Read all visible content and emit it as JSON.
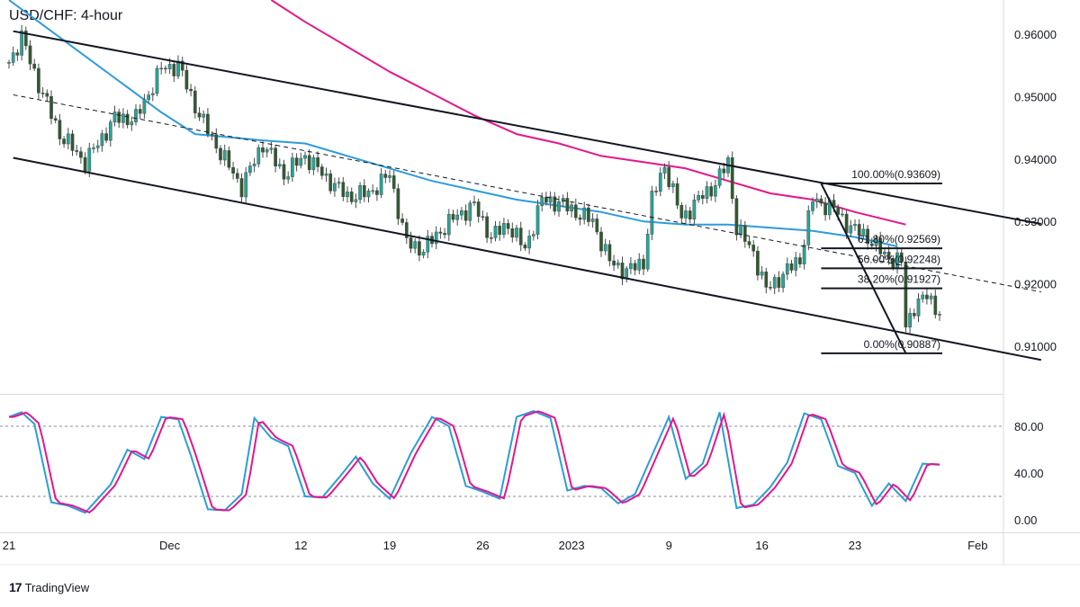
{
  "chart_title": "USD/CHF: 4-hour",
  "brand": {
    "logo": "17",
    "name": "TradingView"
  },
  "colors": {
    "up": "#26a69a",
    "down": "#2f5a2f",
    "candle": "#4a4a4a",
    "ma_fast": "#2d9cdb",
    "ma_slow": "#e4168c",
    "stoch_k": "#2d9cdb",
    "stoch_d": "#e4168c",
    "line": "#131722"
  },
  "chart_data": [
    {
      "type": "candlestick",
      "name": "price",
      "ylim": [
        0.9025,
        0.9655
      ],
      "yticks": [
        "0.96000",
        "0.95000",
        "0.94000",
        "0.93000",
        "0.92000",
        "0.91000"
      ],
      "ytick_values": [
        0.96,
        0.95,
        0.94,
        0.93,
        0.92,
        0.91
      ],
      "x_ticks": [
        "21",
        "Dec",
        "12",
        "19",
        "26",
        "2023",
        "9",
        "16",
        "23",
        "Feb"
      ],
      "grid": false,
      "close_anchors": [
        [
          0,
          0.9555
        ],
        [
          3,
          0.9595
        ],
        [
          7,
          0.952
        ],
        [
          12,
          0.944
        ],
        [
          18,
          0.9395
        ],
        [
          25,
          0.9465
        ],
        [
          30,
          0.9465
        ],
        [
          36,
          0.9545
        ],
        [
          40,
          0.955
        ],
        [
          45,
          0.947
        ],
        [
          50,
          0.941
        ],
        [
          55,
          0.9355
        ],
        [
          60,
          0.9425
        ],
        [
          65,
          0.9375
        ],
        [
          70,
          0.9405
        ],
        [
          75,
          0.937
        ],
        [
          80,
          0.934
        ],
        [
          85,
          0.9345
        ],
        [
          90,
          0.9375
        ],
        [
          94,
          0.9265
        ],
        [
          98,
          0.9255
        ],
        [
          102,
          0.9285
        ],
        [
          106,
          0.931
        ],
        [
          110,
          0.9325
        ],
        [
          114,
          0.9275
        ],
        [
          118,
          0.9295
        ],
        [
          122,
          0.9255
        ],
        [
          126,
          0.9335
        ],
        [
          130,
          0.933
        ],
        [
          134,
          0.9315
        ],
        [
          138,
          0.93
        ],
        [
          142,
          0.9235
        ],
        [
          146,
          0.922
        ],
        [
          150,
          0.9235
        ],
        [
          152,
          0.9335
        ],
        [
          155,
          0.939
        ],
        [
          159,
          0.9305
        ],
        [
          163,
          0.9335
        ],
        [
          167,
          0.936
        ],
        [
          170,
          0.9395
        ],
        [
          172,
          0.929
        ],
        [
          176,
          0.925
        ],
        [
          179,
          0.919
        ],
        [
          183,
          0.9215
        ],
        [
          187,
          0.924
        ],
        [
          190,
          0.9335
        ],
        [
          195,
          0.932
        ],
        [
          199,
          0.929
        ],
        [
          203,
          0.9275
        ],
        [
          207,
          0.9245
        ],
        [
          211,
          0.9235
        ],
        [
          212,
          0.913
        ],
        [
          214,
          0.9165
        ],
        [
          217,
          0.918
        ],
        [
          220,
          0.9155
        ]
      ],
      "ma_fast": [
        [
          0,
          0.9655
        ],
        [
          8,
          0.9615
        ],
        [
          18,
          0.9565
        ],
        [
          28,
          0.9515
        ],
        [
          36,
          0.9475
        ],
        [
          44,
          0.944
        ],
        [
          52,
          0.9435
        ],
        [
          60,
          0.943
        ],
        [
          70,
          0.9425
        ],
        [
          80,
          0.9405
        ],
        [
          90,
          0.9385
        ],
        [
          100,
          0.9365
        ],
        [
          110,
          0.935
        ],
        [
          120,
          0.9335
        ],
        [
          130,
          0.9325
        ],
        [
          140,
          0.9315
        ],
        [
          150,
          0.93
        ],
        [
          160,
          0.9295
        ],
        [
          170,
          0.9295
        ],
        [
          180,
          0.929
        ],
        [
          190,
          0.9285
        ],
        [
          200,
          0.9275
        ],
        [
          210,
          0.926
        ]
      ],
      "ma_slow": [
        [
          62,
          0.9655
        ],
        [
          70,
          0.962
        ],
        [
          80,
          0.958
        ],
        [
          90,
          0.954
        ],
        [
          100,
          0.9505
        ],
        [
          110,
          0.947
        ],
        [
          120,
          0.944
        ],
        [
          130,
          0.9425
        ],
        [
          140,
          0.9405
        ],
        [
          150,
          0.9395
        ],
        [
          160,
          0.9385
        ],
        [
          170,
          0.9365
        ],
        [
          180,
          0.9345
        ],
        [
          190,
          0.9335
        ],
        [
          200,
          0.9315
        ],
        [
          212,
          0.9295
        ]
      ],
      "channel_upper": [
        [
          1,
          0.9605
        ],
        [
          244,
          0.9296
        ]
      ],
      "channel_lower": [
        [
          1,
          0.9402
        ],
        [
          244,
          0.9078
        ]
      ],
      "channel_mid": [
        [
          1,
          0.9503
        ],
        [
          244,
          0.9187
        ]
      ],
      "swing_line": [
        [
          192,
          0.93609
        ],
        [
          212,
          0.90887
        ]
      ],
      "fibonacci": [
        {
          "label": "100.00%(0.93609)",
          "value": 0.93609
        },
        {
          "label": "61.80%(0.92569)",
          "value": 0.92569
        },
        {
          "label": "50.00%(0.92248)",
          "value": 0.92248
        },
        {
          "label": "38.20%(0.91927)",
          "value": 0.91927
        },
        {
          "label": "0.00%(0.90887)",
          "value": 0.90887
        }
      ]
    },
    {
      "type": "line",
      "name": "stochastic",
      "ylim": [
        0,
        100
      ],
      "yticks": [
        "80.00",
        "40.00",
        "0.00"
      ],
      "ytick_values": [
        80,
        40,
        0
      ],
      "levels": [
        80,
        20
      ],
      "k_anchors": [
        [
          0,
          88
        ],
        [
          3,
          92
        ],
        [
          6,
          82
        ],
        [
          10,
          15
        ],
        [
          14,
          12
        ],
        [
          18,
          6
        ],
        [
          24,
          30
        ],
        [
          28,
          60
        ],
        [
          32,
          52
        ],
        [
          36,
          88
        ],
        [
          40,
          86
        ],
        [
          43,
          55
        ],
        [
          47,
          9
        ],
        [
          51,
          8
        ],
        [
          55,
          22
        ],
        [
          58,
          87
        ],
        [
          62,
          70
        ],
        [
          66,
          63
        ],
        [
          70,
          20
        ],
        [
          74,
          19
        ],
        [
          78,
          36
        ],
        [
          82,
          54
        ],
        [
          86,
          31
        ],
        [
          90,
          18
        ],
        [
          95,
          57
        ],
        [
          100,
          88
        ],
        [
          104,
          80
        ],
        [
          108,
          29
        ],
        [
          112,
          24
        ],
        [
          116,
          18
        ],
        [
          120,
          88
        ],
        [
          124,
          93
        ],
        [
          128,
          87
        ],
        [
          132,
          25
        ],
        [
          136,
          29
        ],
        [
          140,
          27
        ],
        [
          144,
          14
        ],
        [
          148,
          22
        ],
        [
          152,
          55
        ],
        [
          156,
          88
        ],
        [
          160,
          35
        ],
        [
          164,
          48
        ],
        [
          168,
          92
        ],
        [
          172,
          10
        ],
        [
          176,
          13
        ],
        [
          180,
          28
        ],
        [
          184,
          49
        ],
        [
          188,
          91
        ],
        [
          192,
          86
        ],
        [
          196,
          46
        ],
        [
          200,
          40
        ],
        [
          204,
          12
        ],
        [
          208,
          31
        ],
        [
          212,
          16
        ],
        [
          216,
          48
        ],
        [
          220,
          47
        ]
      ]
    }
  ]
}
